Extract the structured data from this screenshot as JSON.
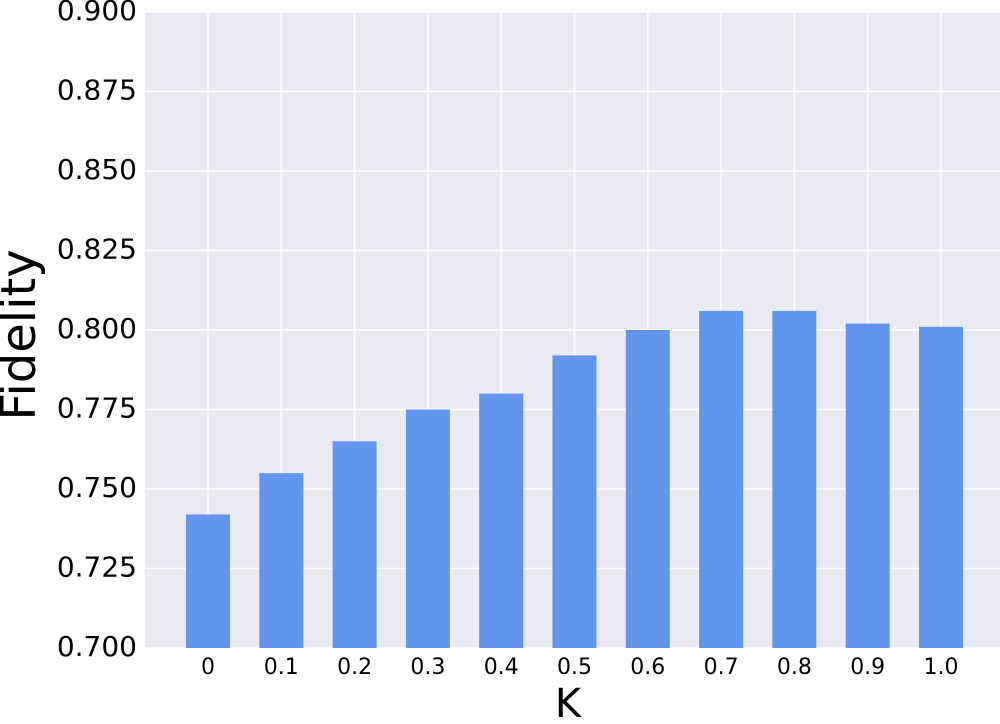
{
  "chart_data": {
    "type": "bar",
    "x_label": "K",
    "y_label": "Fidelity",
    "categories": [
      "0",
      "0.1",
      "0.2",
      "0.3",
      "0.4",
      "0.5",
      "0.6",
      "0.7",
      "0.8",
      "0.9",
      "1.0"
    ],
    "values": [
      0.742,
      0.755,
      0.765,
      0.775,
      0.78,
      0.792,
      0.8,
      0.806,
      0.806,
      0.802,
      0.801
    ],
    "color": "#6495ed",
    "ylim": [
      0.7,
      0.9
    ],
    "yticks": [
      {
        "value": 0.7,
        "label": "0.700"
      },
      {
        "value": 0.725,
        "label": "0.725"
      },
      {
        "value": 0.75,
        "label": "0.750"
      },
      {
        "value": 0.775,
        "label": "0.775"
      },
      {
        "value": 0.8,
        "label": "0.800"
      },
      {
        "value": 0.825,
        "label": "0.825"
      },
      {
        "value": 0.85,
        "label": "0.850"
      },
      {
        "value": 0.875,
        "label": "0.875"
      },
      {
        "value": 0.9,
        "label": "0.900"
      }
    ],
    "grid": true
  }
}
